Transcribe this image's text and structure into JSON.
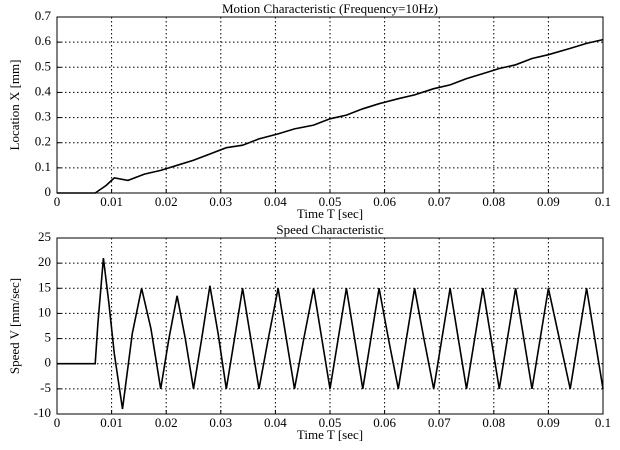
{
  "chart_data": [
    {
      "type": "line",
      "title": "Motion Characteristic (Frequency=10Hz)",
      "xlabel": "Time T [sec]",
      "ylabel": "Location X [mm]",
      "x": [
        0,
        0.007,
        0.009,
        0.0105,
        0.013,
        0.016,
        0.019,
        0.022,
        0.025,
        0.028,
        0.031,
        0.034,
        0.037,
        0.0405,
        0.0435,
        0.047,
        0.05,
        0.053,
        0.056,
        0.059,
        0.0625,
        0.0655,
        0.069,
        0.072,
        0.075,
        0.078,
        0.081,
        0.084,
        0.087,
        0.09,
        0.094,
        0.097,
        0.1
      ],
      "series": [
        {
          "color": "#000000",
          "values": [
            0,
            0,
            0.03,
            0.06,
            0.05,
            0.075,
            0.09,
            0.11,
            0.13,
            0.155,
            0.18,
            0.19,
            0.215,
            0.235,
            0.255,
            0.27,
            0.295,
            0.31,
            0.335,
            0.355,
            0.375,
            0.39,
            0.415,
            0.43,
            0.455,
            0.475,
            0.495,
            0.51,
            0.535,
            0.55,
            0.575,
            0.595,
            0.61
          ]
        }
      ],
      "xlim": [
        0,
        0.1
      ],
      "ylim": [
        0,
        0.7
      ],
      "xticks": [
        0,
        0.01,
        0.02,
        0.03,
        0.04,
        0.05,
        0.06,
        0.07,
        0.08,
        0.09,
        0.1
      ],
      "yticks": [
        0,
        0.1,
        0.2,
        0.3,
        0.4,
        0.5,
        0.6,
        0.7
      ],
      "grid": true
    },
    {
      "type": "line",
      "title": "Speed Characteristic",
      "xlabel": "Time T [sec]",
      "ylabel": "Speed V [mm/sec]",
      "x": [
        0,
        0.007,
        0.0075,
        0.0085,
        0.0095,
        0.0105,
        0.012,
        0.0138,
        0.0155,
        0.0172,
        0.019,
        0.0205,
        0.022,
        0.0235,
        0.025,
        0.0265,
        0.028,
        0.0295,
        0.031,
        0.0325,
        0.034,
        0.0355,
        0.037,
        0.0387,
        0.0405,
        0.042,
        0.0435,
        0.0452,
        0.047,
        0.0485,
        0.05,
        0.0515,
        0.053,
        0.0545,
        0.056,
        0.0575,
        0.059,
        0.0607,
        0.0625,
        0.064,
        0.0655,
        0.0672,
        0.069,
        0.0705,
        0.072,
        0.0735,
        0.075,
        0.0765,
        0.078,
        0.0795,
        0.081,
        0.0825,
        0.084,
        0.0855,
        0.087,
        0.0885,
        0.09,
        0.092,
        0.094,
        0.0955,
        0.097,
        0.0985,
        0.1
      ],
      "series": [
        {
          "color": "#000000",
          "values": [
            0,
            0,
            8,
            21,
            12,
            2,
            -9,
            6,
            15,
            7,
            -5,
            5,
            13.5,
            5,
            -5,
            5,
            15.5,
            6,
            -5,
            5,
            15,
            5,
            -5,
            5,
            15,
            5,
            -5,
            5,
            15,
            5,
            -5,
            5,
            15,
            5,
            -5,
            5,
            15,
            5,
            -5,
            5,
            15,
            5,
            -5,
            5,
            15,
            5,
            -5,
            5,
            15,
            5,
            -5,
            5,
            15,
            5,
            -5,
            5,
            15,
            5,
            -5,
            5,
            15,
            5,
            -5
          ]
        }
      ],
      "xlim": [
        0,
        0.1
      ],
      "ylim": [
        -10,
        25
      ],
      "xticks": [
        0,
        0.01,
        0.02,
        0.03,
        0.04,
        0.05,
        0.06,
        0.07,
        0.08,
        0.09,
        0.1
      ],
      "yticks": [
        -10,
        -5,
        0,
        5,
        10,
        15,
        20,
        25
      ],
      "grid": true
    }
  ]
}
